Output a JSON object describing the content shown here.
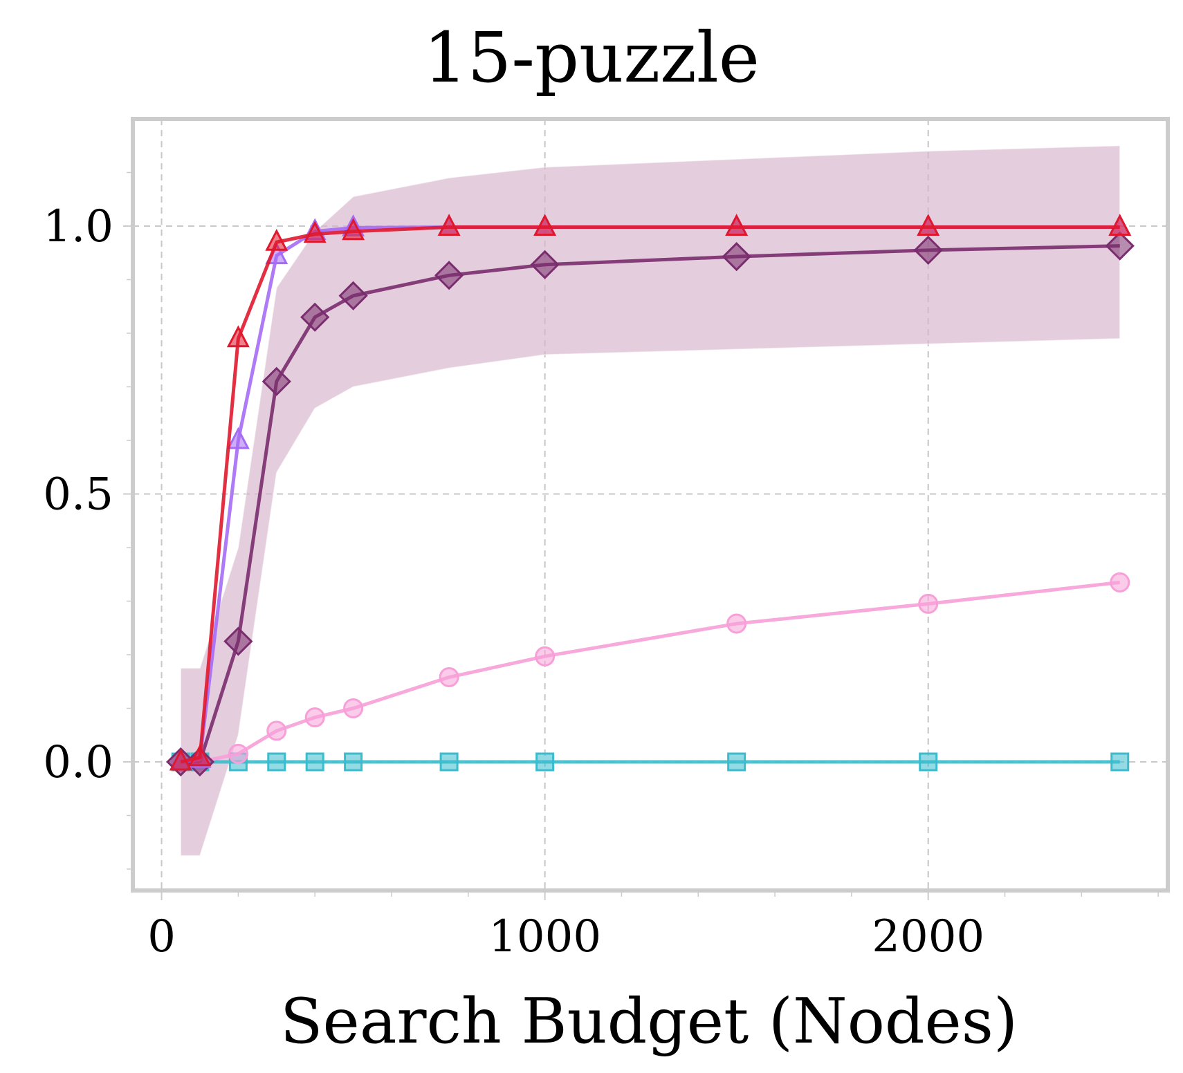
{
  "chart_data": {
    "type": "line",
    "title": "15-puzzle",
    "xlabel": "Search Budget (Nodes)",
    "ylabel": "",
    "xlim": [
      -75,
      2625
    ],
    "ylim": [
      -0.24,
      1.2
    ],
    "xticks": [
      0,
      1000,
      2000
    ],
    "xtick_labels": [
      "0",
      "1000",
      "2000"
    ],
    "xminor": [
      200,
      400,
      600,
      800,
      1200,
      1400,
      1600,
      1800,
      2200,
      2400,
      2600
    ],
    "yticks": [
      0.0,
      0.5,
      1.0
    ],
    "ytick_labels": [
      "0.0",
      "0.5",
      "1.0"
    ],
    "yminor": [
      -0.2,
      -0.1,
      0.1,
      0.2,
      0.3,
      0.4,
      0.6,
      0.7,
      0.8,
      0.9,
      1.1
    ],
    "grid": true,
    "x": [
      50,
      100,
      200,
      300,
      400,
      500,
      750,
      1000,
      1500,
      2000,
      2500
    ],
    "series": [
      {
        "marker": "square",
        "color": "#3bbccd",
        "values": [
          0.0,
          0.0,
          0.0,
          0.0,
          0.0,
          0.0,
          0.0,
          0.0,
          0.0,
          0.0,
          0.0
        ]
      },
      {
        "marker": "circle",
        "color": "#f7a0d8",
        "values": [
          0.0,
          0.0,
          0.015,
          0.058,
          0.083,
          0.1,
          0.158,
          0.197,
          0.258,
          0.295,
          0.335
        ]
      },
      {
        "marker": "diamond",
        "color": "#7a2d6e",
        "values": [
          0.0,
          0.0,
          0.225,
          0.71,
          0.83,
          0.87,
          0.908,
          0.928,
          0.943,
          0.955,
          0.963
        ],
        "band_upper": [
          0.175,
          0.175,
          0.4,
          0.885,
          0.99,
          1.055,
          1.09,
          1.11,
          1.125,
          1.14,
          1.15
        ],
        "band_lower": [
          -0.175,
          -0.175,
          0.05,
          0.54,
          0.66,
          0.7,
          0.735,
          0.76,
          0.77,
          0.78,
          0.79
        ],
        "band_color": "#d7b5cc"
      },
      {
        "marker": "triangle",
        "color": "#a56bf5",
        "values": [
          0.0,
          0.005,
          0.6,
          0.945,
          0.99,
          0.997,
          0.998,
          0.998,
          0.998,
          0.998,
          0.998
        ]
      },
      {
        "marker": "triangle",
        "color": "#e0182d",
        "values": [
          0.0,
          0.008,
          0.79,
          0.97,
          0.985,
          0.99,
          0.998,
          0.998,
          0.998,
          0.998,
          0.998
        ]
      }
    ]
  }
}
